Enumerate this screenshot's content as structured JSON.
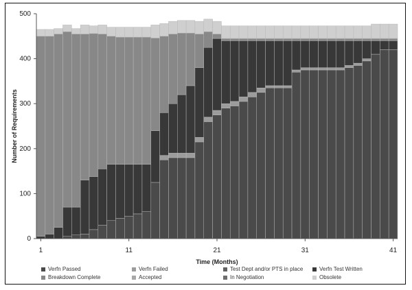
{
  "chart_data": {
    "type": "bar",
    "stacked": true,
    "title": "",
    "xlabel": "Time (Months)",
    "ylabel": "Number of Requirements",
    "ylim": [
      0,
      500
    ],
    "yticks": [
      0,
      100,
      200,
      300,
      400,
      500
    ],
    "xtick_labels": [
      "1",
      "11",
      "21",
      "31",
      "41"
    ],
    "months": [
      1,
      2,
      3,
      4,
      5,
      6,
      7,
      8,
      9,
      10,
      11,
      12,
      13,
      14,
      15,
      16,
      17,
      18,
      19,
      20,
      21,
      22,
      23,
      24,
      25,
      26,
      27,
      28,
      29,
      30,
      31,
      32,
      33,
      34,
      35,
      36,
      37,
      38,
      39,
      40,
      41
    ],
    "series": [
      {
        "name": "Verfn Passed",
        "color": "#4a4a4a",
        "values": [
          0,
          0,
          0,
          5,
          8,
          10,
          20,
          30,
          40,
          45,
          50,
          55,
          60,
          125,
          175,
          180,
          180,
          180,
          215,
          260,
          275,
          290,
          295,
          305,
          315,
          325,
          335,
          335,
          335,
          370,
          375,
          375,
          375,
          375,
          375,
          380,
          385,
          395,
          410,
          420,
          420
        ]
      },
      {
        "name": "Verfn Failed",
        "color": "#9c9c9c",
        "values": [
          0,
          0,
          0,
          0,
          0,
          0,
          0,
          0,
          0,
          0,
          0,
          0,
          0,
          0,
          10,
          10,
          10,
          10,
          10,
          10,
          10,
          10,
          10,
          10,
          10,
          10,
          5,
          5,
          5,
          5,
          5,
          5,
          5,
          5,
          5,
          5,
          5,
          5,
          0,
          0,
          0
        ]
      },
      {
        "name": "Test Dept and/or PTS in place",
        "color": "#616161",
        "values": [
          0,
          0,
          0,
          0,
          0,
          0,
          0,
          0,
          0,
          0,
          0,
          0,
          0,
          0,
          0,
          0,
          0,
          0,
          0,
          0,
          0,
          0,
          0,
          0,
          0,
          0,
          0,
          0,
          0,
          0,
          0,
          0,
          0,
          0,
          0,
          0,
          0,
          0,
          0,
          0,
          0
        ]
      },
      {
        "name": "Verfn Test Written",
        "color": "#383838",
        "values": [
          5,
          10,
          25,
          65,
          62,
          120,
          118,
          125,
          125,
          120,
          115,
          110,
          105,
          115,
          95,
          110,
          130,
          150,
          155,
          155,
          160,
          140,
          135,
          125,
          115,
          105,
          100,
          100,
          100,
          65,
          60,
          60,
          60,
          60,
          60,
          55,
          50,
          40,
          30,
          20,
          20
        ]
      },
      {
        "name": "Breakdown Complete",
        "color": "#888888",
        "values": [
          445,
          440,
          430,
          390,
          385,
          325,
          318,
          300,
          285,
          283,
          283,
          283,
          283,
          206,
          170,
          155,
          137,
          117,
          75,
          35,
          10,
          5,
          5,
          5,
          5,
          5,
          5,
          5,
          5,
          5,
          5,
          5,
          5,
          5,
          5,
          5,
          5,
          5,
          5,
          5,
          5
        ]
      },
      {
        "name": "Accepted",
        "color": "#a8a8a8",
        "values": [
          0,
          0,
          0,
          0,
          0,
          0,
          0,
          0,
          0,
          0,
          0,
          0,
          0,
          0,
          0,
          0,
          0,
          0,
          0,
          0,
          0,
          0,
          0,
          0,
          0,
          0,
          0,
          0,
          0,
          0,
          0,
          0,
          0,
          0,
          0,
          0,
          0,
          0,
          0,
          0,
          0
        ]
      },
      {
        "name": "In Negotiation",
        "color": "#6e6e6e",
        "values": [
          0,
          0,
          0,
          0,
          0,
          0,
          0,
          0,
          0,
          0,
          0,
          0,
          0,
          0,
          0,
          0,
          0,
          0,
          0,
          0,
          0,
          0,
          0,
          0,
          0,
          0,
          0,
          0,
          0,
          0,
          0,
          0,
          0,
          0,
          0,
          0,
          0,
          0,
          0,
          0,
          0
        ]
      },
      {
        "name": "Obsolete",
        "color": "#cfcfcf",
        "values": [
          15,
          15,
          12,
          15,
          12,
          20,
          17,
          20,
          20,
          22,
          22,
          22,
          22,
          29,
          28,
          28,
          28,
          28,
          28,
          28,
          28,
          28,
          28,
          28,
          28,
          28,
          28,
          28,
          28,
          28,
          28,
          28,
          28,
          28,
          28,
          28,
          28,
          28,
          32,
          32,
          32
        ]
      }
    ],
    "legend_position": "bottom"
  }
}
